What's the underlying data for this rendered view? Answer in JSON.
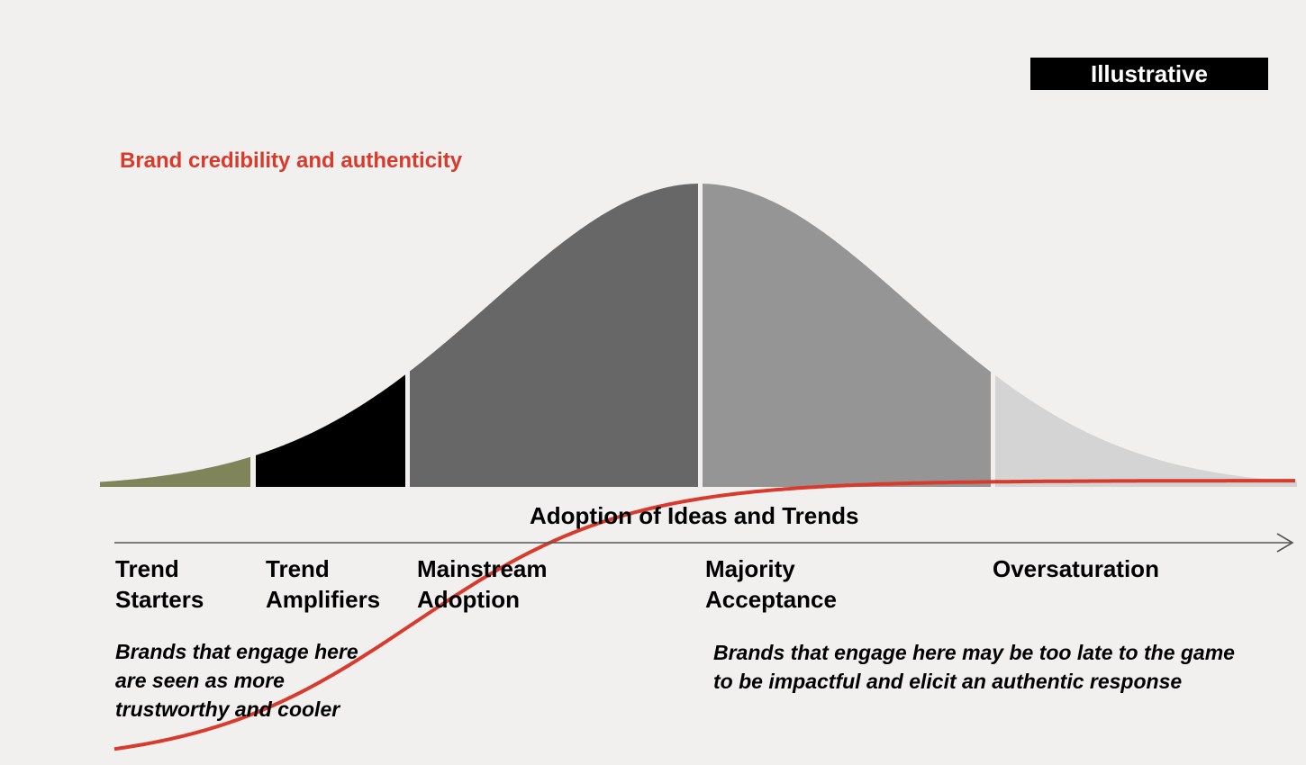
{
  "badge": "Illustrative",
  "curve_label": "Brand credibility and authenticity",
  "axis_title": "Adoption of Ideas and Trends",
  "stages": [
    {
      "line1": "Trend",
      "line2": "Starters",
      "color": "#80845a"
    },
    {
      "line1": "Trend",
      "line2": "Amplifiers",
      "color": "#000000"
    },
    {
      "line1": "Mainstream",
      "line2": "Adoption",
      "color": "#676767"
    },
    {
      "line1": "Majority",
      "line2": "Acceptance",
      "color": "#959595"
    },
    {
      "line1": "Oversaturation",
      "line2": "",
      "color": "#d4d4d4"
    }
  ],
  "notes": {
    "left": [
      "Brands that engage here",
      "are seen as more",
      "trustworthy and cooler"
    ],
    "right": [
      "Brands that engage here may be too late to the game",
      "to be impactful and elicit an authentic response"
    ]
  },
  "colors": {
    "credibility_line": "#d83a2c",
    "axis": "#555555"
  }
}
